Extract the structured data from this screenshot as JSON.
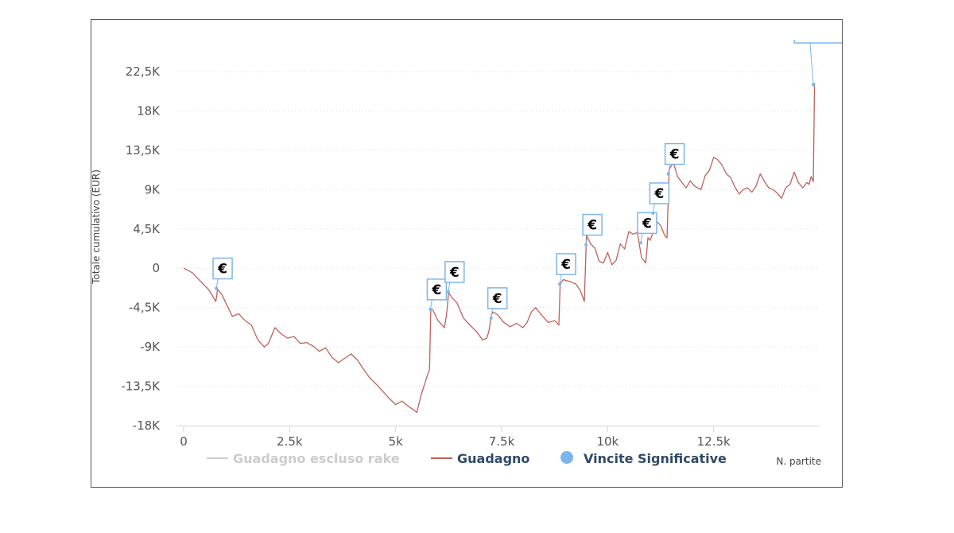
{
  "colors": {
    "profit_line": "#c0605a",
    "no_rake_line": "#cccccc",
    "wins_marker": "#7cb5ec",
    "grid": "#dddddd",
    "axis": "#ccd6eb",
    "legend_active": "#2f4a68",
    "legend_inactive": "#cccccc"
  },
  "chart_data": {
    "type": "line",
    "title": "",
    "xlabel": "N. partite",
    "ylabel": "Totale cumulativo (EUR)",
    "xlim": [
      0,
      15000
    ],
    "ylim": [
      -18000,
      22500
    ],
    "yticks": [
      {
        "value": 22500,
        "label": "22,5K"
      },
      {
        "value": 18000,
        "label": "18K"
      },
      {
        "value": 13500,
        "label": "13,5K"
      },
      {
        "value": 9000,
        "label": "9K"
      },
      {
        "value": 4500,
        "label": "4,5K"
      },
      {
        "value": 0,
        "label": "0"
      },
      {
        "value": -4500,
        "label": "-4,5K"
      },
      {
        "value": -9000,
        "label": "-9K"
      },
      {
        "value": -13500,
        "label": "-13,5K"
      },
      {
        "value": -18000,
        "label": "-18K"
      }
    ],
    "xticks": [
      {
        "value": 0,
        "label": "0"
      },
      {
        "value": 2500,
        "label": "2.5k"
      },
      {
        "value": 5000,
        "label": "5k"
      },
      {
        "value": 7500,
        "label": "7.5k"
      },
      {
        "value": 10000,
        "label": "10k"
      },
      {
        "value": 12500,
        "label": "12.5k"
      }
    ],
    "grid": "horizontal dotted",
    "legend_placement": "bottom",
    "series": [
      {
        "name": "Guadagno escluso rake",
        "visible": false,
        "points": []
      },
      {
        "name": "Guadagno",
        "visible": true,
        "points": [
          [
            0,
            0
          ],
          [
            200,
            -500
          ],
          [
            400,
            -1500
          ],
          [
            600,
            -2500
          ],
          [
            760,
            -3800
          ],
          [
            800,
            -2400
          ],
          [
            900,
            -3000
          ],
          [
            1000,
            -4000
          ],
          [
            1150,
            -5500
          ],
          [
            1300,
            -5200
          ],
          [
            1450,
            -6000
          ],
          [
            1600,
            -6500
          ],
          [
            1750,
            -8200
          ],
          [
            1900,
            -9000
          ],
          [
            2000,
            -8600
          ],
          [
            2150,
            -6800
          ],
          [
            2300,
            -7500
          ],
          [
            2450,
            -8000
          ],
          [
            2600,
            -7800
          ],
          [
            2750,
            -8600
          ],
          [
            2900,
            -8500
          ],
          [
            3050,
            -8900
          ],
          [
            3200,
            -9500
          ],
          [
            3350,
            -9100
          ],
          [
            3500,
            -10200
          ],
          [
            3650,
            -10800
          ],
          [
            3800,
            -10300
          ],
          [
            3950,
            -9800
          ],
          [
            4100,
            -10500
          ],
          [
            4250,
            -11600
          ],
          [
            4400,
            -12600
          ],
          [
            4550,
            -13300
          ],
          [
            4700,
            -14100
          ],
          [
            4850,
            -14900
          ],
          [
            5000,
            -15600
          ],
          [
            5150,
            -15200
          ],
          [
            5300,
            -15800
          ],
          [
            5450,
            -16300
          ],
          [
            5500,
            -16500
          ],
          [
            5600,
            -14500
          ],
          [
            5700,
            -13000
          ],
          [
            5750,
            -12200
          ],
          [
            5800,
            -11600
          ],
          [
            5830,
            -4600
          ],
          [
            5880,
            -4800
          ],
          [
            6000,
            -6000
          ],
          [
            6150,
            -6800
          ],
          [
            6200,
            -5300
          ],
          [
            6250,
            -2800
          ],
          [
            6320,
            -3300
          ],
          [
            6450,
            -4000
          ],
          [
            6600,
            -5700
          ],
          [
            6750,
            -6500
          ],
          [
            6900,
            -7200
          ],
          [
            7050,
            -8200
          ],
          [
            7150,
            -8000
          ],
          [
            7200,
            -7200
          ],
          [
            7260,
            -5300
          ],
          [
            7300,
            -5000
          ],
          [
            7400,
            -5300
          ],
          [
            7550,
            -6200
          ],
          [
            7700,
            -6700
          ],
          [
            7850,
            -6300
          ],
          [
            8000,
            -6800
          ],
          [
            8100,
            -6200
          ],
          [
            8200,
            -5000
          ],
          [
            8300,
            -4500
          ],
          [
            8450,
            -5400
          ],
          [
            8600,
            -6200
          ],
          [
            8750,
            -6000
          ],
          [
            8850,
            -6500
          ],
          [
            8880,
            -1800
          ],
          [
            8950,
            -1300
          ],
          [
            9100,
            -1500
          ],
          [
            9250,
            -1800
          ],
          [
            9350,
            -2500
          ],
          [
            9450,
            -3800
          ],
          [
            9500,
            3800
          ],
          [
            9600,
            2800
          ],
          [
            9700,
            2300
          ],
          [
            9800,
            800
          ],
          [
            9900,
            600
          ],
          [
            10000,
            1800
          ],
          [
            10100,
            400
          ],
          [
            10200,
            900
          ],
          [
            10300,
            2800
          ],
          [
            10400,
            2200
          ],
          [
            10500,
            4200
          ],
          [
            10600,
            3900
          ],
          [
            10700,
            4100
          ],
          [
            10800,
            1200
          ],
          [
            10900,
            600
          ],
          [
            10950,
            3500
          ],
          [
            11000,
            3200
          ],
          [
            11050,
            3800
          ],
          [
            11150,
            5400
          ],
          [
            11250,
            4900
          ],
          [
            11350,
            3700
          ],
          [
            11400,
            3500
          ],
          [
            11450,
            11300
          ],
          [
            11550,
            12100
          ],
          [
            11650,
            10500
          ],
          [
            11750,
            9800
          ],
          [
            11850,
            9200
          ],
          [
            11950,
            10000
          ],
          [
            12050,
            9400
          ],
          [
            12200,
            9000
          ],
          [
            12300,
            10600
          ],
          [
            12400,
            11200
          ],
          [
            12500,
            12700
          ],
          [
            12600,
            12400
          ],
          [
            12700,
            11800
          ],
          [
            12800,
            10800
          ],
          [
            12900,
            10400
          ],
          [
            13000,
            9300
          ],
          [
            13100,
            8500
          ],
          [
            13200,
            9000
          ],
          [
            13300,
            9200
          ],
          [
            13400,
            8700
          ],
          [
            13500,
            9400
          ],
          [
            13600,
            10800
          ],
          [
            13700,
            9900
          ],
          [
            13800,
            9200
          ],
          [
            13900,
            9000
          ],
          [
            14000,
            8600
          ],
          [
            14100,
            8000
          ],
          [
            14200,
            9200
          ],
          [
            14300,
            9600
          ],
          [
            14400,
            11000
          ],
          [
            14500,
            9800
          ],
          [
            14600,
            9200
          ],
          [
            14700,
            9800
          ],
          [
            14750,
            9600
          ],
          [
            14800,
            10500
          ],
          [
            14850,
            9900
          ],
          [
            14880,
            21200
          ]
        ]
      },
      {
        "name": "Vincite Significative",
        "visible": true,
        "flag_text": "€",
        "points": [
          [
            770,
            -2300
          ],
          [
            5820,
            -4700
          ],
          [
            6240,
            -2700
          ],
          [
            7250,
            -5700
          ],
          [
            8870,
            -1800
          ],
          [
            9490,
            2700
          ],
          [
            10780,
            2900
          ],
          [
            11070,
            6300
          ],
          [
            11430,
            10800
          ],
          [
            14850,
            21000
          ]
        ]
      }
    ]
  }
}
